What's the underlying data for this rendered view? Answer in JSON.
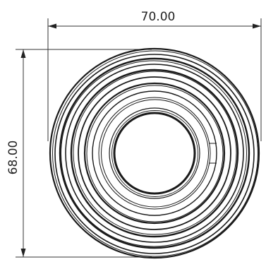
{
  "dimensions": {
    "width_label": "70.00",
    "height_label": "68.00"
  },
  "colors": {
    "line": "#1a1a1a",
    "dimension_line": "#333333",
    "background": "#ffffff"
  }
}
